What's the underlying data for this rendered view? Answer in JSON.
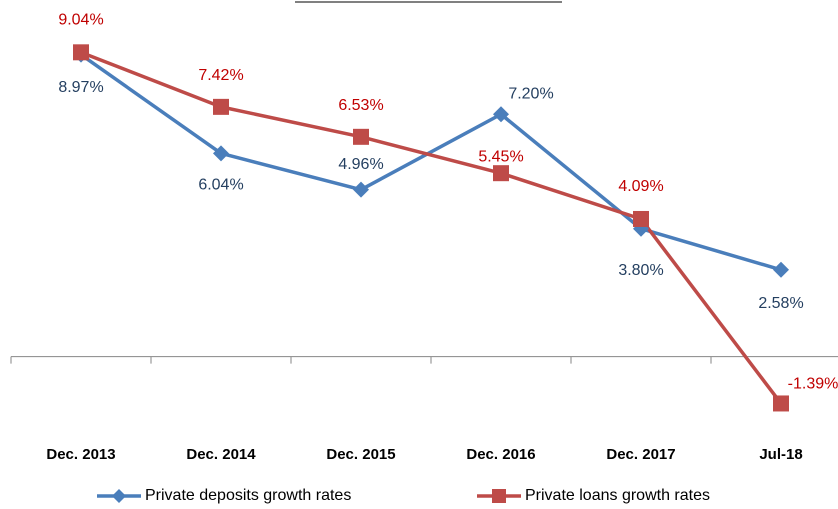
{
  "chart_data": {
    "type": "line",
    "categories": [
      "Dec. 2013",
      "Dec. 2014",
      "Dec. 2015",
      "Dec. 2016",
      "Dec. 2017",
      "Jul-18"
    ],
    "series": [
      {
        "name": "Private deposits growth rates",
        "color": "#4a7ebb",
        "label_color": "#243f60",
        "values": [
          8.97,
          6.04,
          4.96,
          7.2,
          3.8,
          2.58
        ],
        "value_labels": [
          "8.97%",
          "6.04%",
          "4.96%",
          "7.20%",
          "3.80%",
          "2.58%"
        ]
      },
      {
        "name": "Private loans growth rates",
        "color": "#be4b48",
        "label_color": "#c00000",
        "values": [
          9.04,
          7.42,
          6.53,
          5.45,
          4.09,
          -1.39
        ],
        "value_labels": [
          "9.04%",
          "7.42%",
          "6.53%",
          "5.45%",
          "4.09%",
          "-1.39%"
        ]
      }
    ],
    "ylim": [
      -2,
      10
    ],
    "legend": "bottom"
  }
}
